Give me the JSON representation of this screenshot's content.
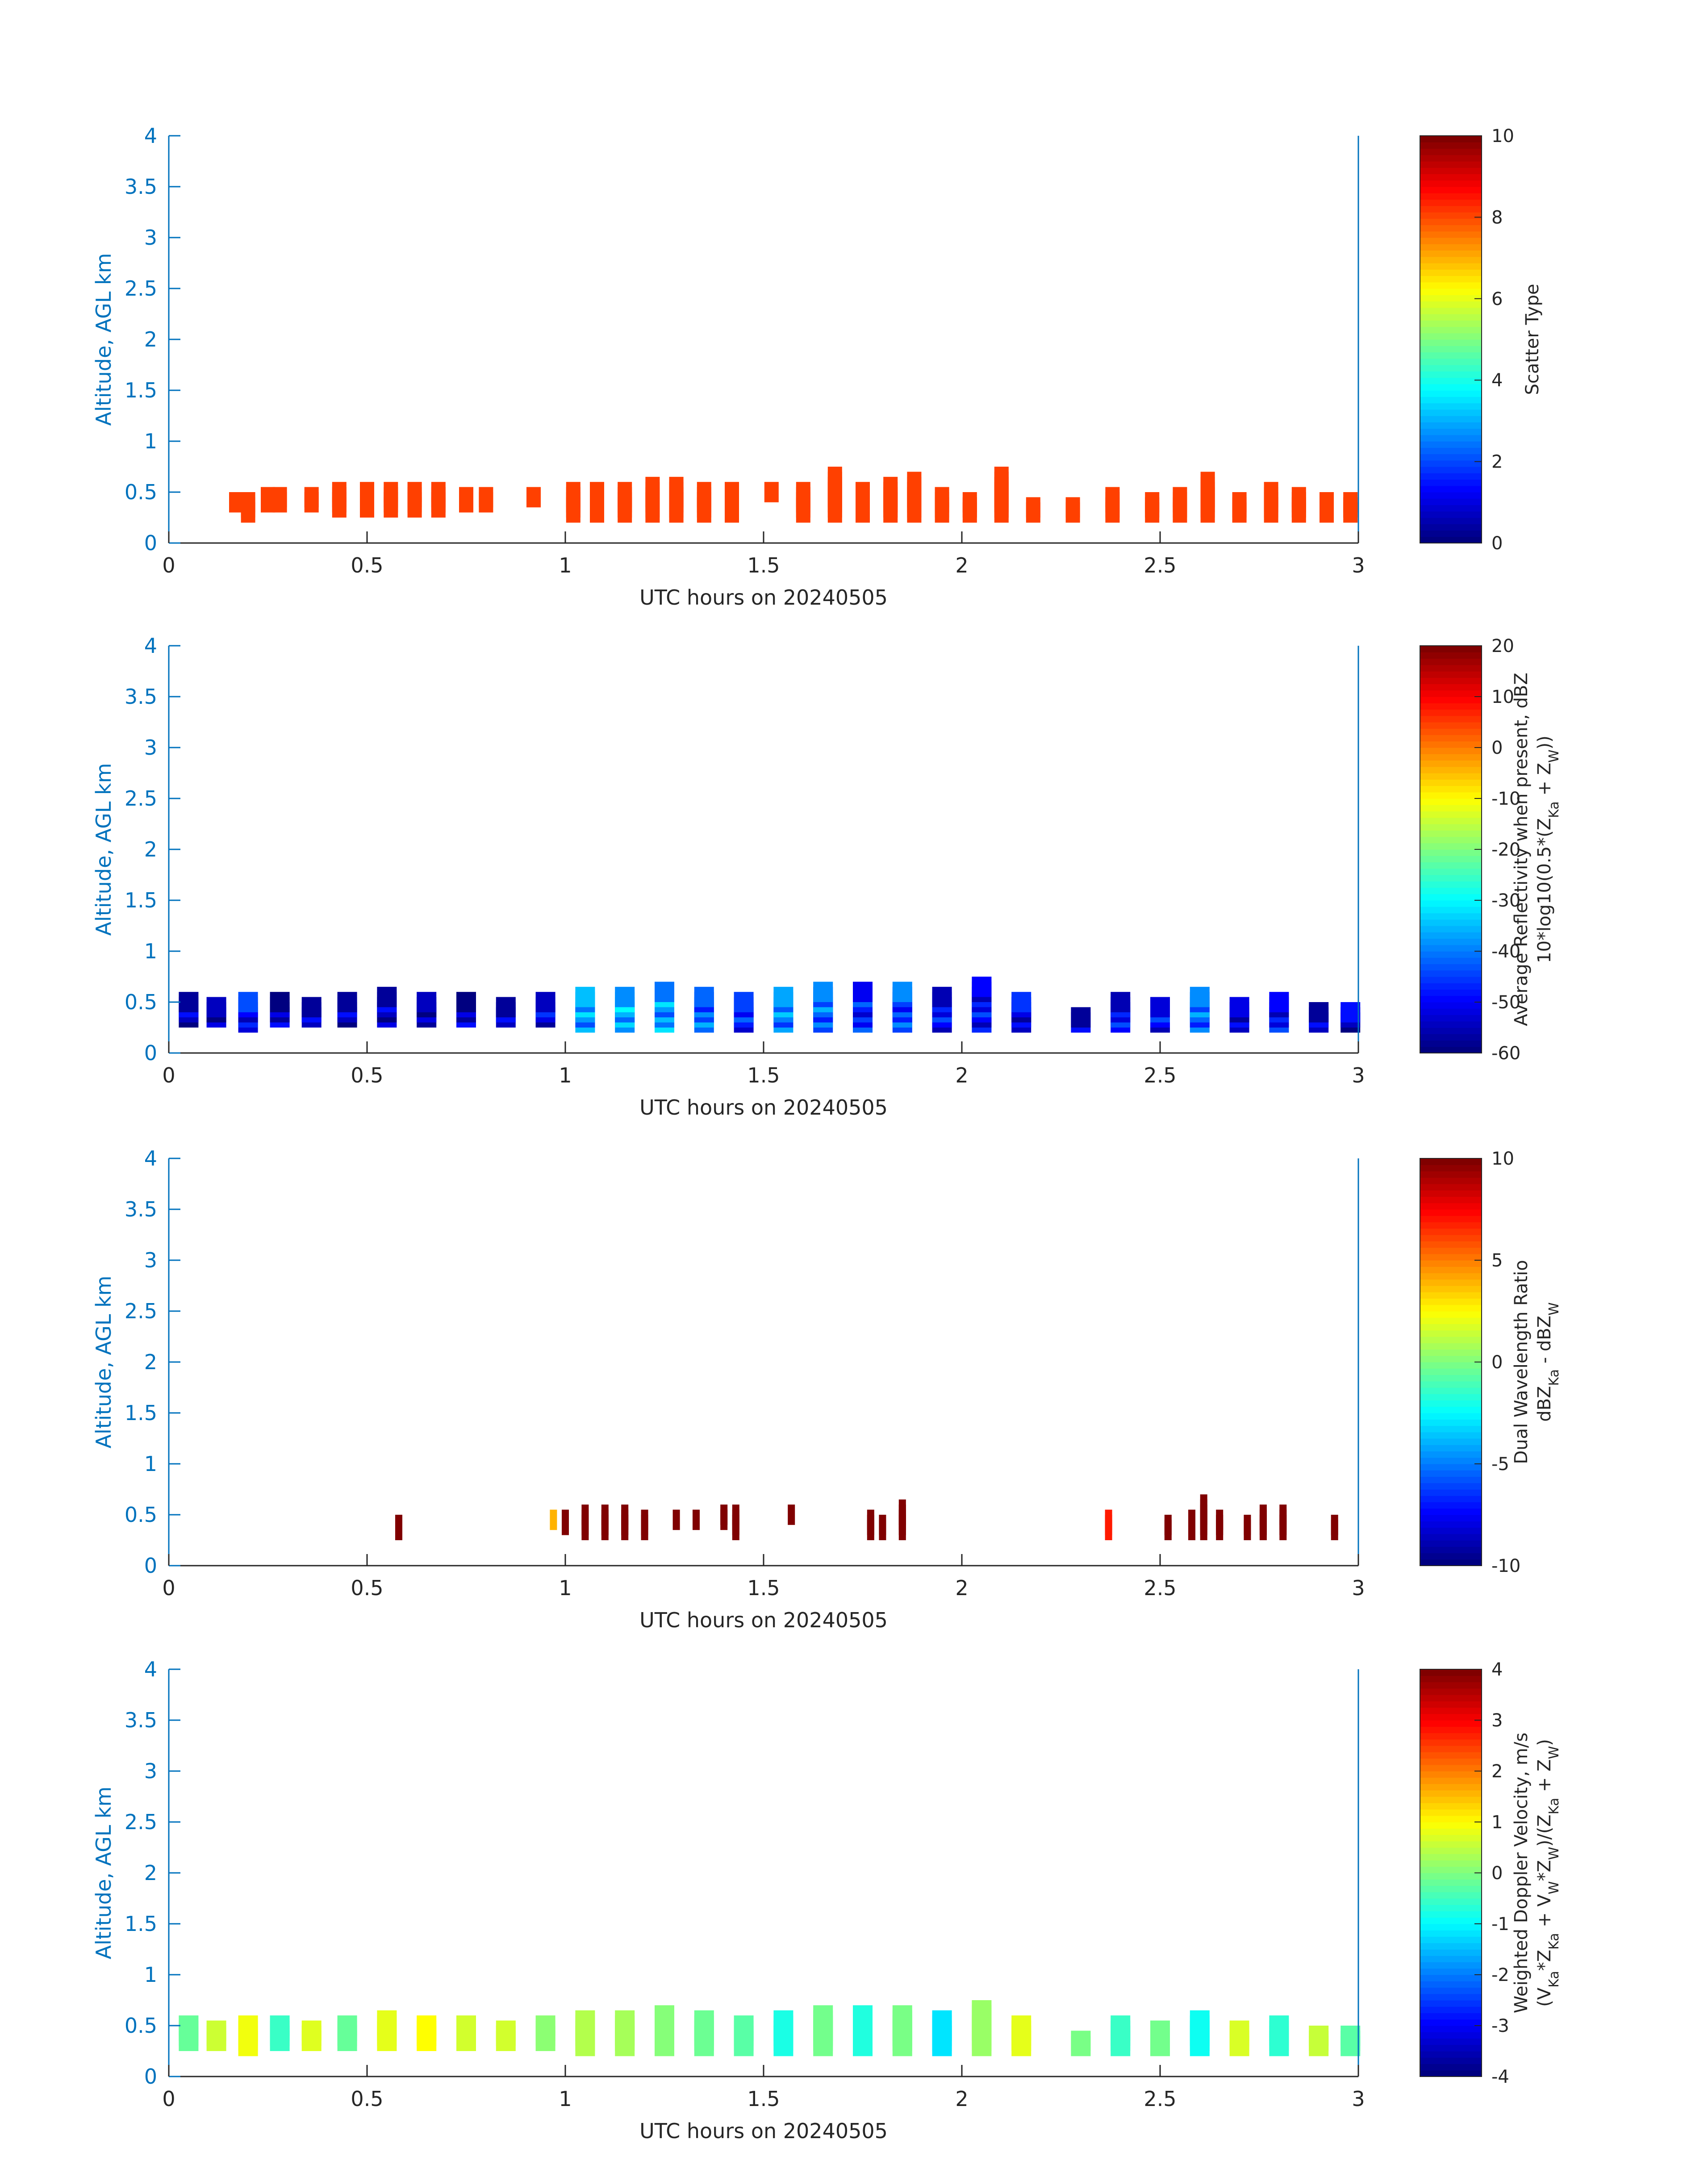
{
  "chart_data": [
    {
      "type": "heatmap",
      "xlabel": "UTC hours on 20240505",
      "ylabel": "Altitude, AGL km",
      "xlim": [
        0,
        3
      ],
      "ylim": [
        0,
        4
      ],
      "xticks": [
        "0",
        "0.5",
        "1",
        "1.5",
        "2",
        "2.5",
        "3"
      ],
      "yticks": [
        "0",
        "0.5",
        "1",
        "1.5",
        "2",
        "2.5",
        "3",
        "3.5",
        "4"
      ],
      "colorbar": {
        "label_lines": [
          "Scatter Type"
        ],
        "min": 0,
        "max": 10,
        "ticks": [
          "0",
          "2",
          "4",
          "6",
          "8",
          "10"
        ]
      },
      "value_note": "scatter type 8.5 everywhere echo present",
      "columns": [
        [
          0.17,
          0.3,
          0.35
        ],
        [
          0.2,
          0.2,
          0.35
        ],
        [
          0.25,
          0.3,
          0.4
        ],
        [
          0.28,
          0.3,
          0.4
        ],
        [
          0.36,
          0.3,
          0.4
        ],
        [
          0.43,
          0.25,
          0.45
        ],
        [
          0.5,
          0.25,
          0.45
        ],
        [
          0.56,
          0.25,
          0.45
        ],
        [
          0.62,
          0.25,
          0.45
        ],
        [
          0.68,
          0.25,
          0.45
        ],
        [
          0.75,
          0.3,
          0.4
        ],
        [
          0.8,
          0.3,
          0.4
        ],
        [
          0.92,
          0.35,
          0.4
        ],
        [
          1.02,
          0.2,
          0.45
        ],
        [
          1.08,
          0.2,
          0.45
        ],
        [
          1.15,
          0.2,
          0.45
        ],
        [
          1.22,
          0.2,
          0.5
        ],
        [
          1.28,
          0.2,
          0.5
        ],
        [
          1.35,
          0.2,
          0.45
        ],
        [
          1.42,
          0.2,
          0.45
        ],
        [
          1.52,
          0.4,
          0.45
        ],
        [
          1.6,
          0.2,
          0.45
        ],
        [
          1.68,
          0.2,
          0.6
        ],
        [
          1.75,
          0.2,
          0.45
        ],
        [
          1.82,
          0.2,
          0.5
        ],
        [
          1.88,
          0.2,
          0.55
        ],
        [
          1.95,
          0.2,
          0.4
        ],
        [
          2.02,
          0.2,
          0.35
        ],
        [
          2.1,
          0.2,
          0.6
        ],
        [
          2.18,
          0.2,
          0.3
        ],
        [
          2.28,
          0.2,
          0.3
        ],
        [
          2.38,
          0.2,
          0.4
        ],
        [
          2.48,
          0.2,
          0.35
        ],
        [
          2.55,
          0.2,
          0.4
        ],
        [
          2.62,
          0.2,
          0.55
        ],
        [
          2.7,
          0.2,
          0.35
        ],
        [
          2.78,
          0.2,
          0.45
        ],
        [
          2.85,
          0.2,
          0.4
        ],
        [
          2.92,
          0.2,
          0.35
        ],
        [
          2.98,
          0.2,
          0.35
        ]
      ]
    },
    {
      "type": "heatmap",
      "xlabel": "UTC hours on 20240505",
      "ylabel": "Altitude, AGL km",
      "xlim": [
        0,
        3
      ],
      "ylim": [
        0,
        4
      ],
      "xticks": [
        "0",
        "0.5",
        "1",
        "1.5",
        "2",
        "2.5",
        "3"
      ],
      "yticks": [
        "0",
        "0.5",
        "1",
        "1.5",
        "2",
        "2.5",
        "3",
        "3.5",
        "4"
      ],
      "colorbar": {
        "label_lines": [
          "Average Reflectivity when present, dBZ",
          "10*log10(0.5*(Z_Ka + Z_W))"
        ],
        "min": -60,
        "max": 20,
        "ticks": [
          "-60",
          "-50",
          "-40",
          "-30",
          "-20",
          "-10",
          "0",
          "10",
          "20"
        ]
      },
      "columns": [
        [
          0.05,
          0.25,
          0.45,
          -55
        ],
        [
          0.12,
          0.25,
          0.4,
          -55
        ],
        [
          0.2,
          0.2,
          0.45,
          -50
        ],
        [
          0.28,
          0.25,
          0.45,
          -55
        ],
        [
          0.36,
          0.25,
          0.4,
          -55
        ],
        [
          0.45,
          0.25,
          0.45,
          -55
        ],
        [
          0.55,
          0.25,
          0.5,
          -55
        ],
        [
          0.65,
          0.25,
          0.45,
          -55
        ],
        [
          0.75,
          0.25,
          0.45,
          -55
        ],
        [
          0.85,
          0.25,
          0.4,
          -55
        ],
        [
          0.95,
          0.25,
          0.45,
          -52
        ],
        [
          1.05,
          0.2,
          0.5,
          -38
        ],
        [
          1.15,
          0.2,
          0.5,
          -36
        ],
        [
          1.25,
          0.2,
          0.55,
          -38
        ],
        [
          1.35,
          0.2,
          0.5,
          -42
        ],
        [
          1.45,
          0.2,
          0.45,
          -48
        ],
        [
          1.55,
          0.2,
          0.5,
          -40
        ],
        [
          1.65,
          0.2,
          0.55,
          -42
        ],
        [
          1.75,
          0.2,
          0.55,
          -48
        ],
        [
          1.85,
          0.2,
          0.55,
          -45
        ],
        [
          1.95,
          0.2,
          0.5,
          -50
        ],
        [
          2.05,
          0.2,
          0.6,
          -50
        ],
        [
          2.15,
          0.2,
          0.45,
          -52
        ],
        [
          2.3,
          0.2,
          0.3,
          -55
        ],
        [
          2.4,
          0.2,
          0.45,
          -50
        ],
        [
          2.5,
          0.2,
          0.4,
          -50
        ],
        [
          2.6,
          0.2,
          0.5,
          -42
        ],
        [
          2.7,
          0.2,
          0.4,
          -52
        ],
        [
          2.8,
          0.2,
          0.45,
          -50
        ],
        [
          2.9,
          0.2,
          0.35,
          -55
        ],
        [
          2.98,
          0.2,
          0.35,
          -55
        ]
      ]
    },
    {
      "type": "heatmap",
      "xlabel": "UTC hours on 20240505",
      "ylabel": "Altitude, AGL km",
      "xlim": [
        0,
        3
      ],
      "ylim": [
        0,
        4
      ],
      "xticks": [
        "0",
        "0.5",
        "1",
        "1.5",
        "2",
        "2.5",
        "3"
      ],
      "yticks": [
        "0",
        "0.5",
        "1",
        "1.5",
        "2",
        "2.5",
        "3",
        "3.5",
        "4"
      ],
      "colorbar": {
        "label_lines": [
          "Dual Wavelength Ratio",
          "dBZ_Ka - dBZ_W"
        ],
        "min": -10,
        "max": 10,
        "ticks": [
          "-10",
          "-5",
          "0",
          "5",
          "10"
        ]
      },
      "columns": [
        [
          0.58,
          0.25,
          0.35,
          10
        ],
        [
          0.97,
          0.35,
          0.4,
          4
        ],
        [
          1.0,
          0.3,
          0.4,
          10
        ],
        [
          1.05,
          0.25,
          0.45,
          10
        ],
        [
          1.1,
          0.25,
          0.45,
          10
        ],
        [
          1.15,
          0.25,
          0.45,
          10
        ],
        [
          1.2,
          0.25,
          0.4,
          10
        ],
        [
          1.28,
          0.35,
          0.4,
          10
        ],
        [
          1.33,
          0.35,
          0.4,
          10
        ],
        [
          1.4,
          0.35,
          0.45,
          10
        ],
        [
          1.43,
          0.25,
          0.45,
          10
        ],
        [
          1.57,
          0.4,
          0.45,
          10
        ],
        [
          1.77,
          0.25,
          0.4,
          10
        ],
        [
          1.8,
          0.25,
          0.35,
          10
        ],
        [
          1.85,
          0.25,
          0.5,
          10
        ],
        [
          2.37,
          0.25,
          0.4,
          7
        ],
        [
          2.52,
          0.25,
          0.35,
          10
        ],
        [
          2.58,
          0.25,
          0.4,
          10
        ],
        [
          2.61,
          0.25,
          0.55,
          10
        ],
        [
          2.65,
          0.25,
          0.4,
          10
        ],
        [
          2.72,
          0.25,
          0.35,
          10
        ],
        [
          2.76,
          0.25,
          0.45,
          10
        ],
        [
          2.81,
          0.25,
          0.45,
          10
        ],
        [
          2.94,
          0.25,
          0.35,
          10
        ]
      ]
    },
    {
      "type": "heatmap",
      "xlabel": "UTC hours on 20240505",
      "ylabel": "Altitude, AGL km",
      "xlim": [
        0,
        3
      ],
      "ylim": [
        0,
        4
      ],
      "xticks": [
        "0",
        "0.5",
        "1",
        "1.5",
        "2",
        "2.5",
        "3"
      ],
      "yticks": [
        "0",
        "0.5",
        "1",
        "1.5",
        "2",
        "2.5",
        "3",
        "3.5",
        "4"
      ],
      "colorbar": {
        "label_lines": [
          "Weighted Doppler Velocity, m/s",
          "(V_Ka*Z_Ka + V_W*Z_W)/(Z_Ka + Z_W)"
        ],
        "min": -4,
        "max": 4,
        "ticks": [
          "-4",
          "-3",
          "-2",
          "-1",
          "0",
          "1",
          "2",
          "3",
          "4"
        ]
      },
      "columns": [
        [
          0.05,
          0.25,
          0.45,
          0.3
        ],
        [
          0.12,
          0.25,
          0.4,
          0.6
        ],
        [
          0.2,
          0.2,
          0.45,
          0.4
        ],
        [
          0.28,
          0.25,
          0.45,
          -0.3
        ],
        [
          0.36,
          0.25,
          0.4,
          0.5
        ],
        [
          0.45,
          0.25,
          0.45,
          0.3
        ],
        [
          0.55,
          0.25,
          0.5,
          0.8
        ],
        [
          0.65,
          0.25,
          0.45,
          0.5
        ],
        [
          0.75,
          0.25,
          0.45,
          0.9
        ],
        [
          0.85,
          0.25,
          0.4,
          0.4
        ],
        [
          0.95,
          0.25,
          0.45,
          0.6
        ],
        [
          1.05,
          0.2,
          0.5,
          0.4
        ],
        [
          1.15,
          0.2,
          0.5,
          -0.2
        ],
        [
          1.25,
          0.2,
          0.55,
          0.3
        ],
        [
          1.35,
          0.2,
          0.5,
          -0.4
        ],
        [
          1.45,
          0.2,
          0.45,
          0.2
        ],
        [
          1.55,
          0.2,
          0.5,
          -0.8
        ],
        [
          1.65,
          0.2,
          0.55,
          -0.6
        ],
        [
          1.75,
          0.2,
          0.55,
          -0.5
        ],
        [
          1.85,
          0.2,
          0.55,
          -0.3
        ],
        [
          1.95,
          0.2,
          0.5,
          -0.7
        ],
        [
          2.05,
          0.2,
          0.6,
          0.2
        ],
        [
          2.15,
          0.2,
          0.45,
          0.3
        ],
        [
          2.3,
          0.2,
          0.3,
          0.2
        ],
        [
          2.4,
          0.2,
          0.45,
          -0.8
        ],
        [
          2.5,
          0.2,
          0.4,
          0.4
        ],
        [
          2.6,
          0.2,
          0.5,
          -0.9
        ],
        [
          2.7,
          0.2,
          0.4,
          0.2
        ],
        [
          2.8,
          0.2,
          0.45,
          -0.4
        ],
        [
          2.9,
          0.2,
          0.35,
          0.3
        ],
        [
          2.98,
          0.2,
          0.35,
          0.2
        ]
      ]
    }
  ],
  "colors": {
    "axis_y": "#0072bd",
    "axis_x": "#262626",
    "scatter_fill": "#ff4000"
  }
}
